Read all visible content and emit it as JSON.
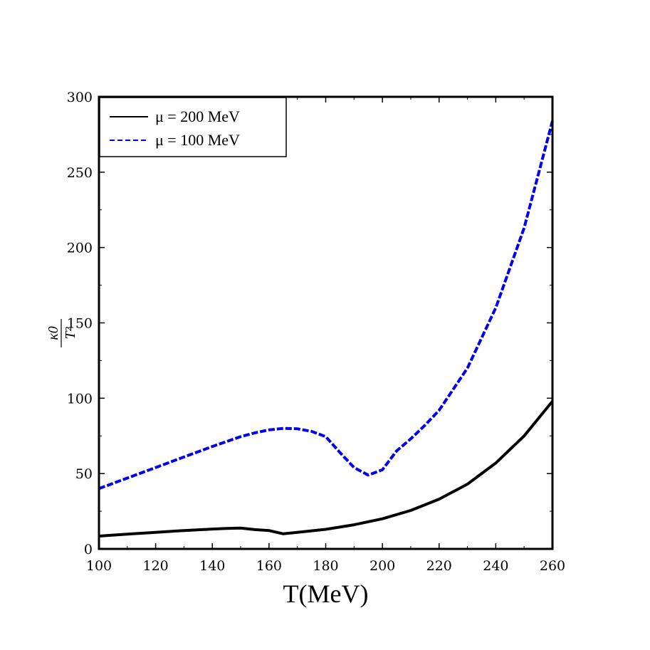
{
  "chart_data": {
    "type": "line",
    "title": "",
    "xlabel": "T(MeV)",
    "ylabel": {
      "numerator": "κ0",
      "denominator": "T²"
    },
    "xlim": [
      100,
      260
    ],
    "ylim": [
      0,
      300
    ],
    "x_ticks": [
      "100",
      "120",
      "140",
      "160",
      "180",
      "200",
      "220",
      "240",
      "260"
    ],
    "y_ticks": [
      "0",
      "50",
      "100",
      "150",
      "200",
      "250",
      "300"
    ],
    "grid": false,
    "legend_position": "top-left",
    "series": [
      {
        "name": "μ = 200 MeV",
        "style": "solid",
        "color": "#000000",
        "x": [
          100,
          110,
          120,
          130,
          140,
          145,
          150,
          155,
          160,
          165,
          170,
          180,
          190,
          200,
          210,
          220,
          230,
          240,
          250,
          260
        ],
        "y": [
          8.5,
          9.8,
          11,
          12.2,
          13.2,
          13.6,
          13.8,
          12.8,
          12.2,
          10,
          11,
          13,
          16,
          20,
          25.5,
          33,
          43,
          57,
          75,
          98
        ]
      },
      {
        "name": "μ = 100 MeV",
        "style": "dashed",
        "color": "#0000ee",
        "x": [
          100,
          110,
          120,
          130,
          140,
          150,
          155,
          160,
          165,
          170,
          175,
          180,
          185,
          190,
          195,
          200,
          205,
          210,
          215,
          220,
          230,
          240,
          250,
          260
        ],
        "y": [
          40,
          47,
          54,
          61,
          68,
          74.5,
          77,
          79,
          80,
          79.7,
          78,
          74.5,
          64,
          54,
          49,
          52.5,
          65,
          73,
          82,
          92,
          120,
          160,
          213,
          284
        ]
      }
    ]
  }
}
